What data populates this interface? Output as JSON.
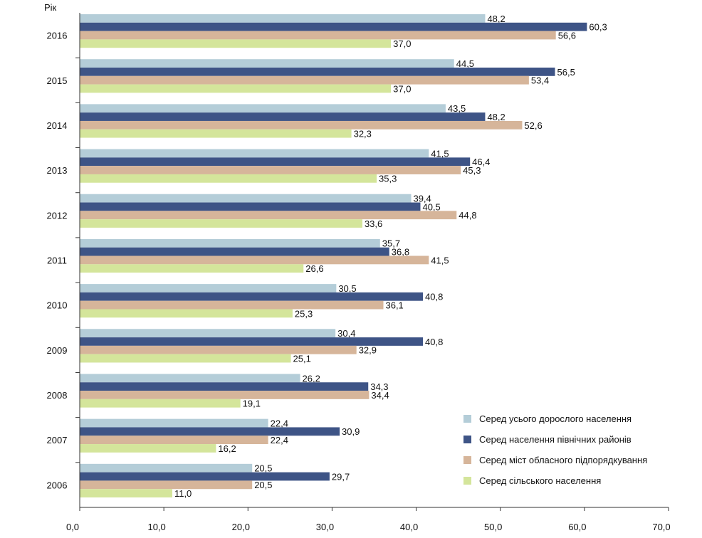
{
  "chart_data": {
    "type": "bar",
    "orientation": "horizontal",
    "y_axis_title": "Рік",
    "categories": [
      "2016",
      "2015",
      "2014",
      "2013",
      "2012",
      "2011",
      "2010",
      "2009",
      "2008",
      "2007",
      "2006"
    ],
    "series": [
      {
        "name": "Серед усього дорослого населення",
        "color": "#b4cdd8",
        "values": [
          48.2,
          44.5,
          43.5,
          41.5,
          39.4,
          35.7,
          30.5,
          30.4,
          26.2,
          22.4,
          20.5
        ],
        "labels": [
          "48,2",
          "44,5",
          "43,5",
          "41,5",
          "39,4",
          "35,7",
          "30,5",
          "30,4",
          "26,2",
          "22,4",
          "20,5"
        ]
      },
      {
        "name": "Серед населення північних районів",
        "color": "#3e5486",
        "values": [
          60.3,
          56.5,
          48.2,
          46.4,
          40.5,
          36.8,
          40.8,
          40.8,
          34.3,
          30.9,
          29.7
        ],
        "labels": [
          "60,3",
          "56,5",
          "48,2",
          "46,4",
          "40,5",
          "36,8",
          "40,8",
          "40,8",
          "34,3",
          "30,9",
          "29,7"
        ]
      },
      {
        "name": "Серед  міст обласного підпорядкування",
        "color": "#d6b59a",
        "values": [
          56.6,
          53.4,
          52.6,
          45.3,
          44.8,
          41.5,
          36.1,
          32.9,
          34.4,
          22.4,
          20.5
        ],
        "labels": [
          "56,6",
          "53,4",
          "52,6",
          "45,3",
          "44,8",
          "41,5",
          "36,1",
          "32,9",
          "34,4",
          "22,4",
          "20,5"
        ]
      },
      {
        "name": "Серед сільського населення",
        "color": "#d4e59b",
        "values": [
          37.0,
          37.0,
          32.3,
          35.3,
          33.6,
          26.6,
          25.3,
          25.1,
          19.1,
          16.2,
          11.0
        ],
        "labels": [
          "37,0",
          "37,0",
          "32,3",
          "35,3",
          "33,6",
          "26,6",
          "25,3",
          "25,1",
          "19,1",
          "16,2",
          "11,0"
        ]
      }
    ],
    "xlim": [
      0,
      70
    ],
    "x_ticks": [
      "0,0",
      "10,0",
      "20,0",
      "30,0",
      "40,0",
      "50,0",
      "60,0",
      "70,0"
    ],
    "legend_position": "bottom-right",
    "grid": false
  }
}
